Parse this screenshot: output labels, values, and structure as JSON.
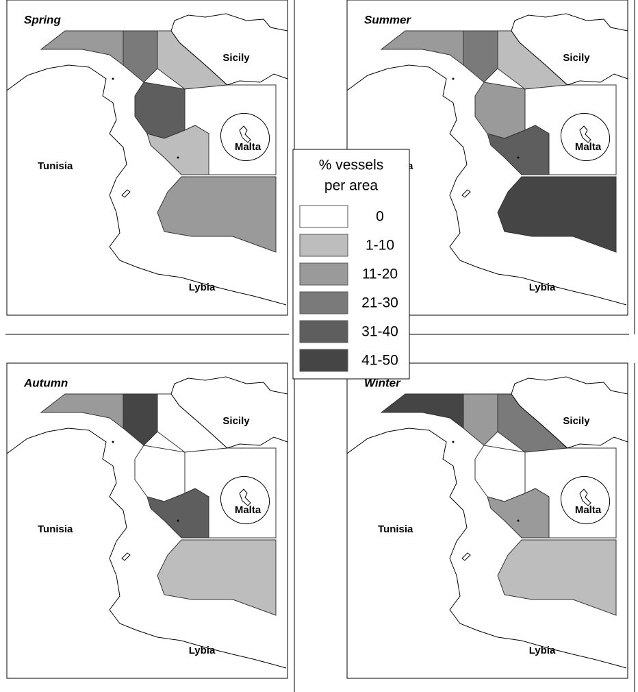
{
  "panels": [
    {
      "title": "Spring",
      "labels": [
        "Sicily",
        "Malta",
        "Tunisia",
        "Lybia"
      ]
    },
    {
      "title": "Summer",
      "labels": [
        "Sicily",
        "Malta",
        "Tunisia",
        "Lybia"
      ]
    },
    {
      "title": "Autumn",
      "labels": [
        "Sicily",
        "Malta",
        "Tunisia",
        "Lybia"
      ]
    },
    {
      "title": "Winter",
      "labels": [
        "Sicily",
        "Malta",
        "Tunisia",
        "Lybia"
      ]
    }
  ],
  "legend": {
    "title": [
      "% vessels",
      "per area"
    ],
    "items": [
      {
        "label": "0",
        "color": "#ffffff"
      },
      {
        "label": "1-10",
        "color": "#bdbdbd"
      },
      {
        "label": "11-20",
        "color": "#9a9a9a"
      },
      {
        "label": "21-30",
        "color": "#7a7a7a"
      },
      {
        "label": "31-40",
        "color": "#5e5e5e"
      },
      {
        "label": "41-50",
        "color": "#454545"
      }
    ]
  }
}
